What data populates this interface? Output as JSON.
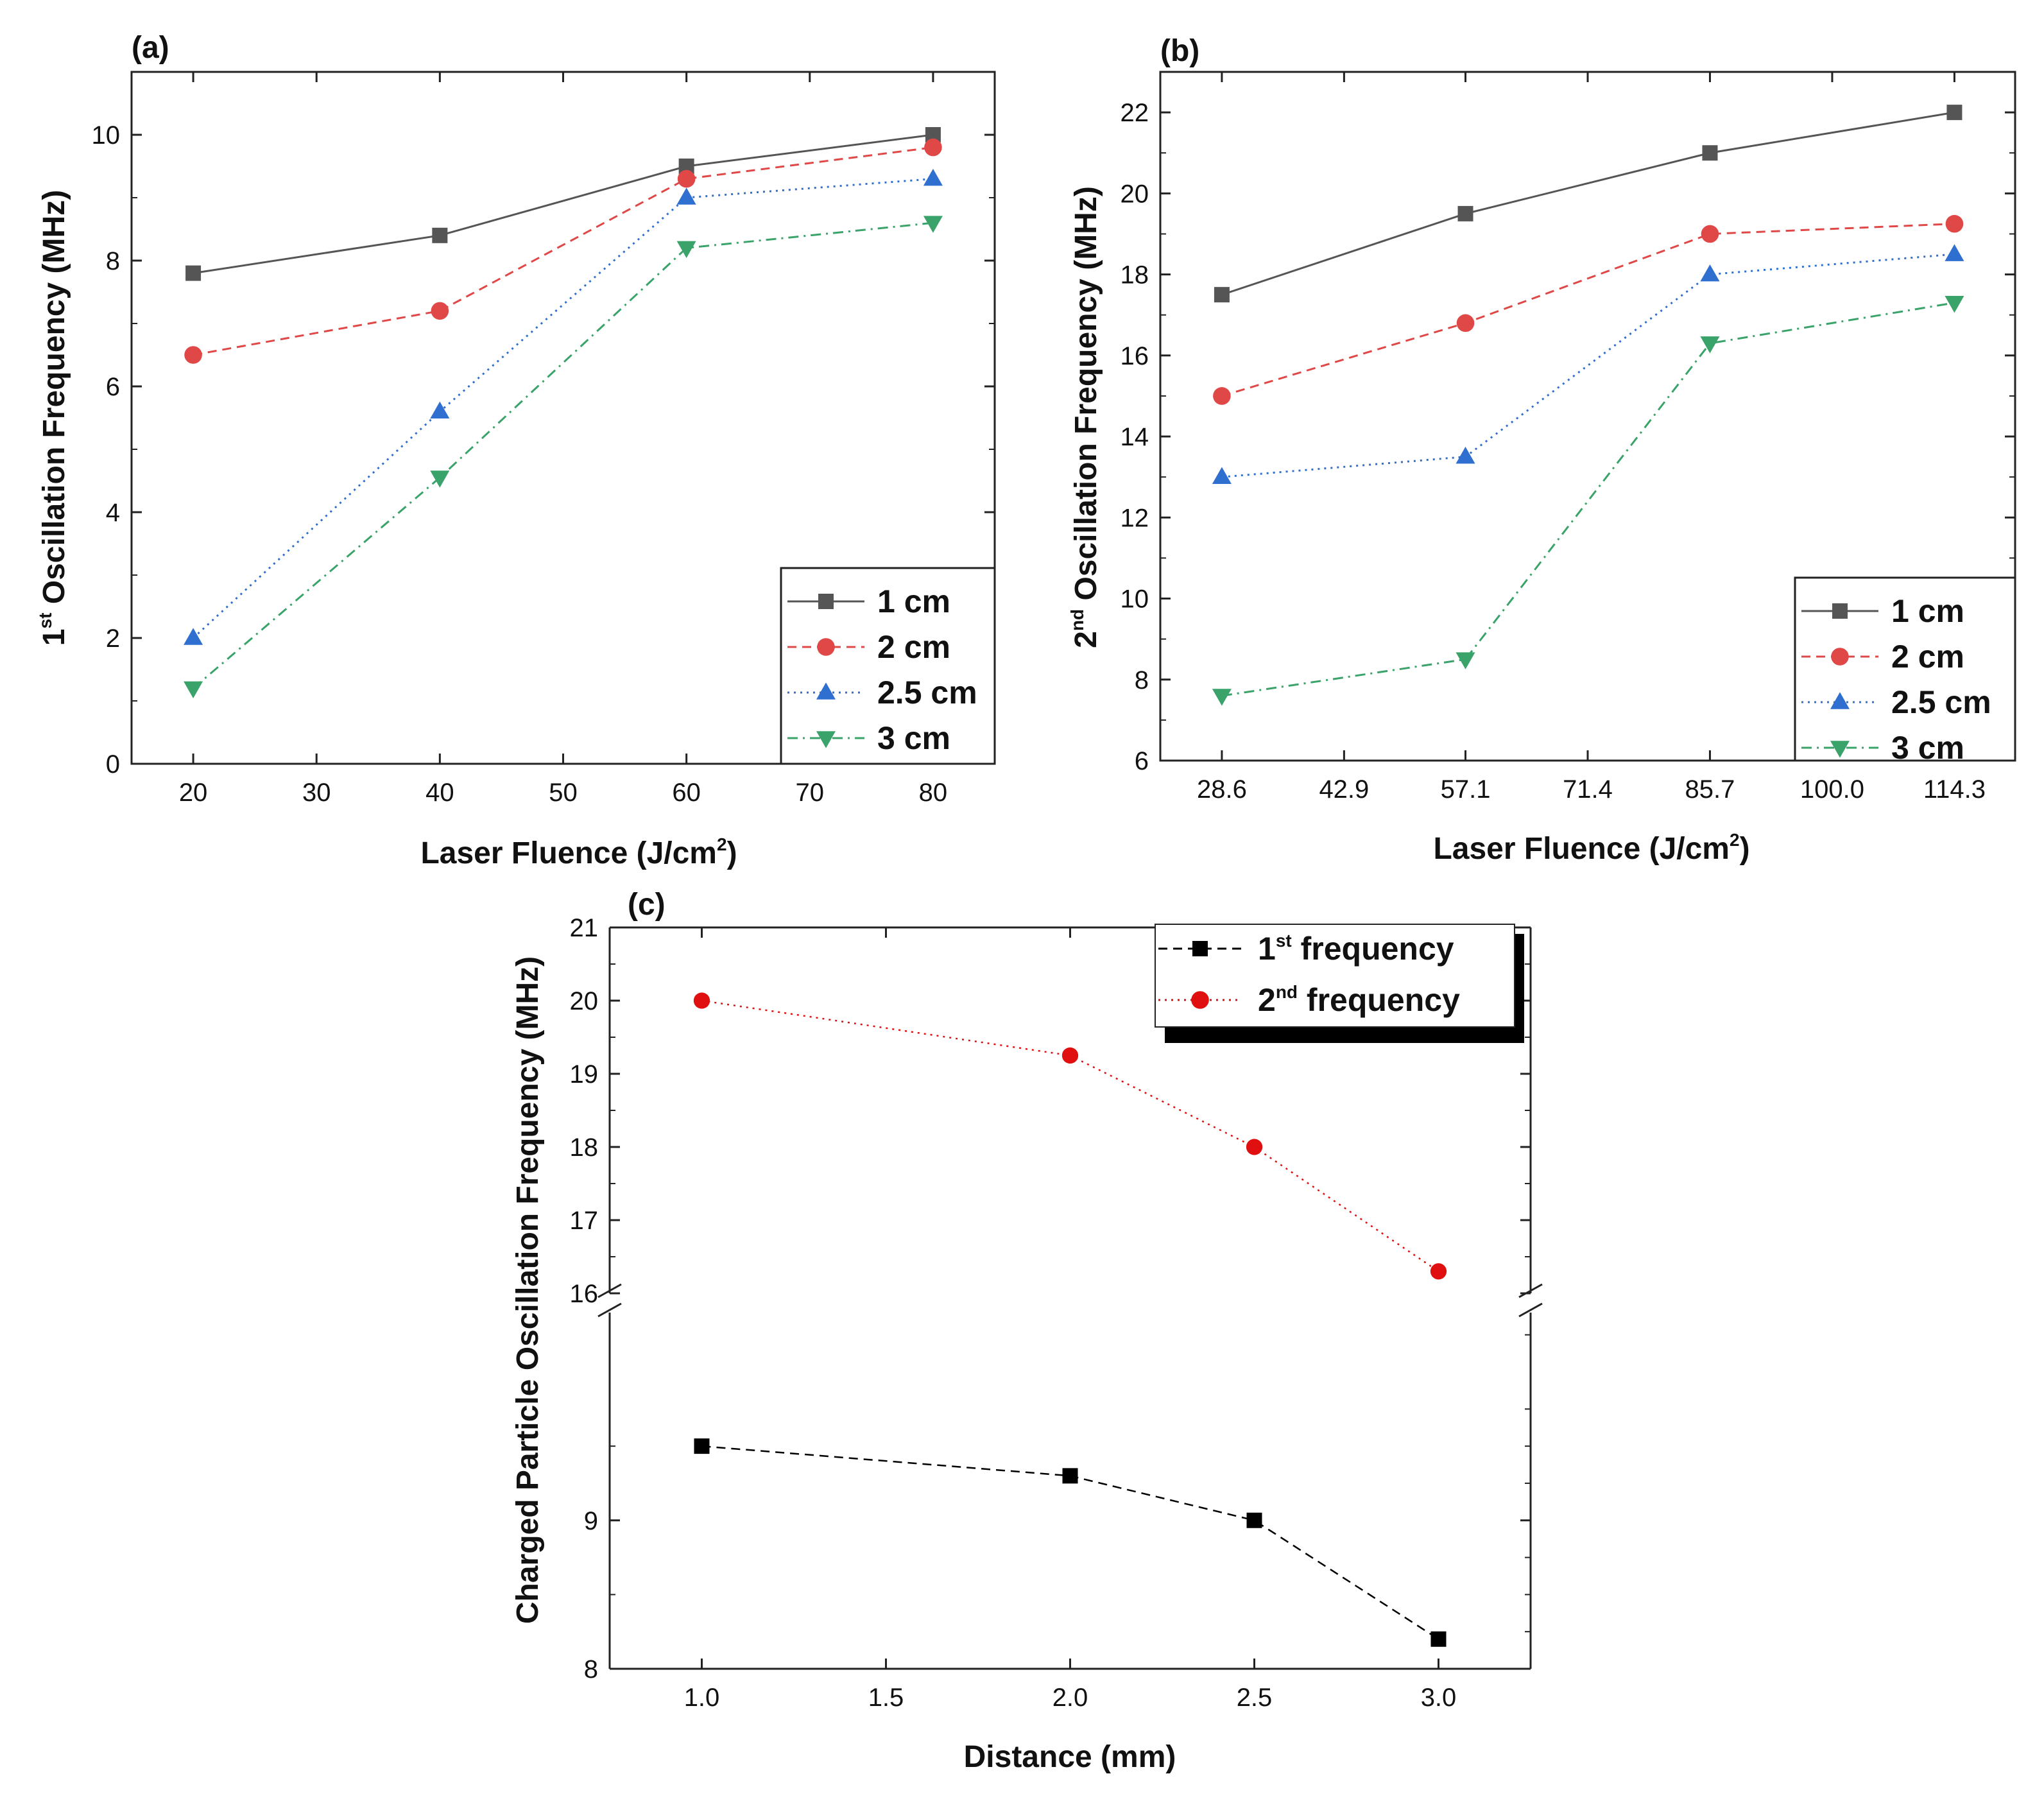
{
  "chart_data": [
    {
      "panel": "(a)",
      "type": "line",
      "x": [
        20,
        40,
        60,
        80
      ],
      "xticks": [
        "20",
        "30",
        "40",
        "50",
        "60",
        "70",
        "80"
      ],
      "yticks": [
        "0",
        "2",
        "4",
        "6",
        "8",
        "10"
      ],
      "xlim": [
        15,
        85
      ],
      "ylim": [
        0,
        11
      ],
      "xlabel": "Laser Fluence (J/cm",
      "xlabel_sup": "2",
      "xlabel_end": ")",
      "ylabel_pre": "1",
      "ylabel_sup": "st",
      "ylabel": " Oscillation Frequency (MHz)",
      "legend_position": "bottom-right",
      "series": [
        {
          "name": "1 cm",
          "values": [
            7.8,
            8.4,
            9.5,
            10.0
          ],
          "color": "#555555",
          "marker": "square",
          "dash": "solid"
        },
        {
          "name": "2 cm",
          "values": [
            6.5,
            7.2,
            9.3,
            9.8
          ],
          "color": "#e04848",
          "marker": "circle",
          "dash": "dashed"
        },
        {
          "name": "2.5 cm",
          "values": [
            2.0,
            5.6,
            9.0,
            9.3
          ],
          "color": "#2f6fd0",
          "marker": "triangle-up",
          "dash": "dotted"
        },
        {
          "name": "3 cm",
          "values": [
            1.2,
            4.55,
            8.2,
            8.6
          ],
          "color": "#3aa36a",
          "marker": "triangle-down",
          "dash": "dashdot"
        }
      ]
    },
    {
      "panel": "(b)",
      "type": "line",
      "x": [
        28.6,
        57.1,
        85.7,
        114.3
      ],
      "xticks": [
        "28.6",
        "42.9",
        "57.1",
        "71.4",
        "85.7",
        "100.0",
        "114.3"
      ],
      "yticks": [
        "6",
        "8",
        "10",
        "12",
        "14",
        "16",
        "18",
        "20",
        "22"
      ],
      "xlim": [
        21.4,
        121.4
      ],
      "ylim": [
        6,
        23
      ],
      "xlabel": "Laser  Fluence (J/cm",
      "xlabel_sup": "2",
      "xlabel_end": ")",
      "ylabel_pre": "2",
      "ylabel_sup": "nd",
      "ylabel": " Oscillation Frequency (MHz)",
      "legend_position": "bottom-right",
      "series": [
        {
          "name": "1 cm",
          "values": [
            17.5,
            19.5,
            21.0,
            22.0
          ],
          "color": "#555555",
          "marker": "square",
          "dash": "solid"
        },
        {
          "name": "2 cm",
          "values": [
            15.0,
            16.8,
            19.0,
            19.25
          ],
          "color": "#e04848",
          "marker": "circle",
          "dash": "dashed"
        },
        {
          "name": "2.5 cm",
          "values": [
            13.0,
            13.5,
            18.0,
            18.5
          ],
          "color": "#2f6fd0",
          "marker": "triangle-up",
          "dash": "dotted"
        },
        {
          "name": "3 cm",
          "values": [
            7.6,
            8.5,
            16.3,
            17.3
          ],
          "color": "#3aa36a",
          "marker": "triangle-down",
          "dash": "dashdot"
        }
      ]
    },
    {
      "panel": "(c)",
      "type": "line",
      "broken_y_axis": true,
      "categories": [
        "1.0",
        "1.5",
        "2.0",
        "2.5",
        "3.0"
      ],
      "x": [
        1.0,
        2.0,
        2.5,
        3.0
      ],
      "xlim": [
        0.75,
        3.25
      ],
      "xlabel": "Distance (mm)",
      "ylabel": "Charged Particle Oscillation Frequency (MHz)",
      "upper_yticks": [
        "16",
        "17",
        "18",
        "19",
        "20",
        "21"
      ],
      "lower_yticks": [
        "8",
        "9"
      ],
      "upper_ylim": [
        16,
        21
      ],
      "lower_ylim": [
        8,
        10.4
      ],
      "legend_position": "top-right",
      "series": [
        {
          "name_pre": "1",
          "name_sup": "st",
          "name": " frequency",
          "values": [
            9.5,
            9.3,
            9.0,
            8.2
          ],
          "color": "#000000",
          "marker": "square",
          "dash": "dashed",
          "segment": "lower"
        },
        {
          "name_pre": "2",
          "name_sup": "nd",
          "name": " frequency",
          "values": [
            20.0,
            19.25,
            18.0,
            16.3
          ],
          "color": "#e01010",
          "marker": "circle",
          "dash": "dotted",
          "segment": "upper"
        }
      ]
    }
  ]
}
